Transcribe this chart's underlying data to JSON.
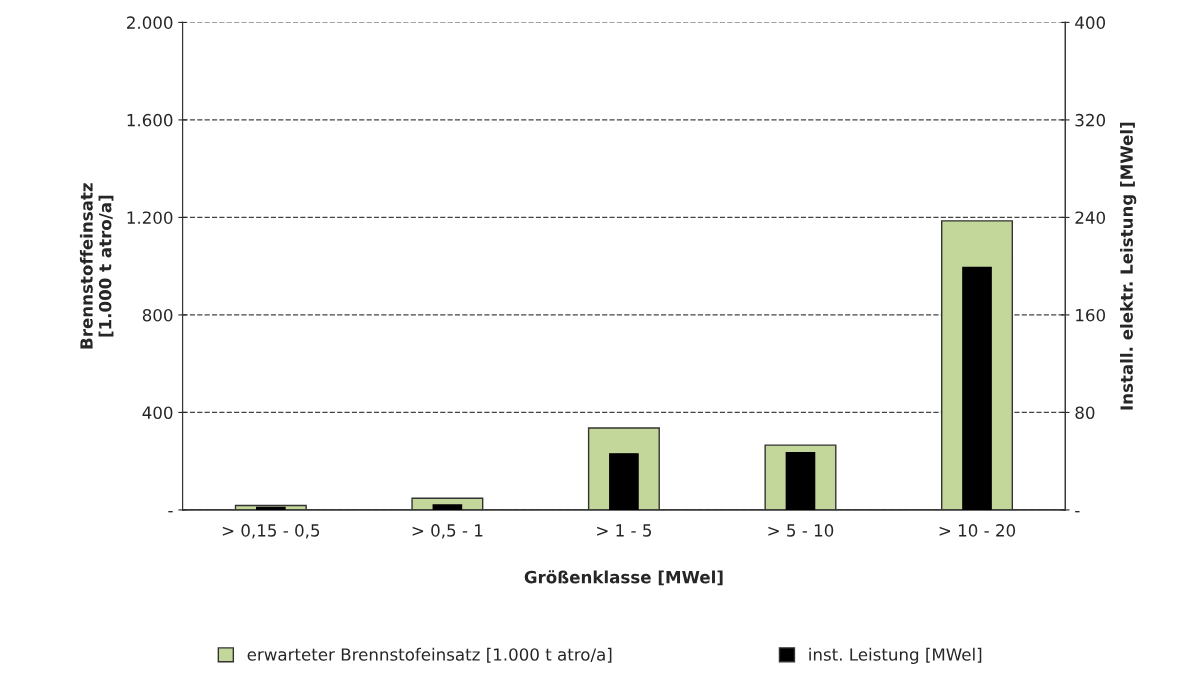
{
  "chart_data": {
    "type": "bar",
    "xlabel": "Größenklasse [MWel]",
    "ylabel": "Brennstoffeinsatz\n[1.000 t atro/a]",
    "y2label": "Install. elektr. Leistung [MWel]",
    "categories": [
      "> 0,15 - 0,5",
      "> 0,5 - 1",
      "> 1 - 5",
      "> 5 - 10",
      "> 10 - 20"
    ],
    "series": [
      {
        "name": "erwarteter Brennstofeinsatz [1.000 t atro/a]",
        "color": "#c4d79b",
        "values": [
          18,
          48,
          336,
          266,
          1186
        ]
      },
      {
        "name": "inst. Leistung [MWel]",
        "color": "#000000",
        "values": [
          2,
          4,
          46,
          47,
          199
        ],
        "axis": "y2"
      }
    ],
    "ylim": [
      0,
      2000
    ],
    "yticks": [
      {
        "value": 0,
        "label": "-"
      },
      {
        "value": 400,
        "label": "400"
      },
      {
        "value": 800,
        "label": "800"
      },
      {
        "value": 1200,
        "label": "1.200"
      },
      {
        "value": 1600,
        "label": "1.600"
      },
      {
        "value": 2000,
        "label": "2.000"
      }
    ],
    "y2lim": [
      0,
      400
    ],
    "y2ticks": [
      {
        "value": 0,
        "label": "-"
      },
      80,
      160,
      240,
      320,
      400
    ],
    "grid": "y",
    "legend": "bottom"
  }
}
